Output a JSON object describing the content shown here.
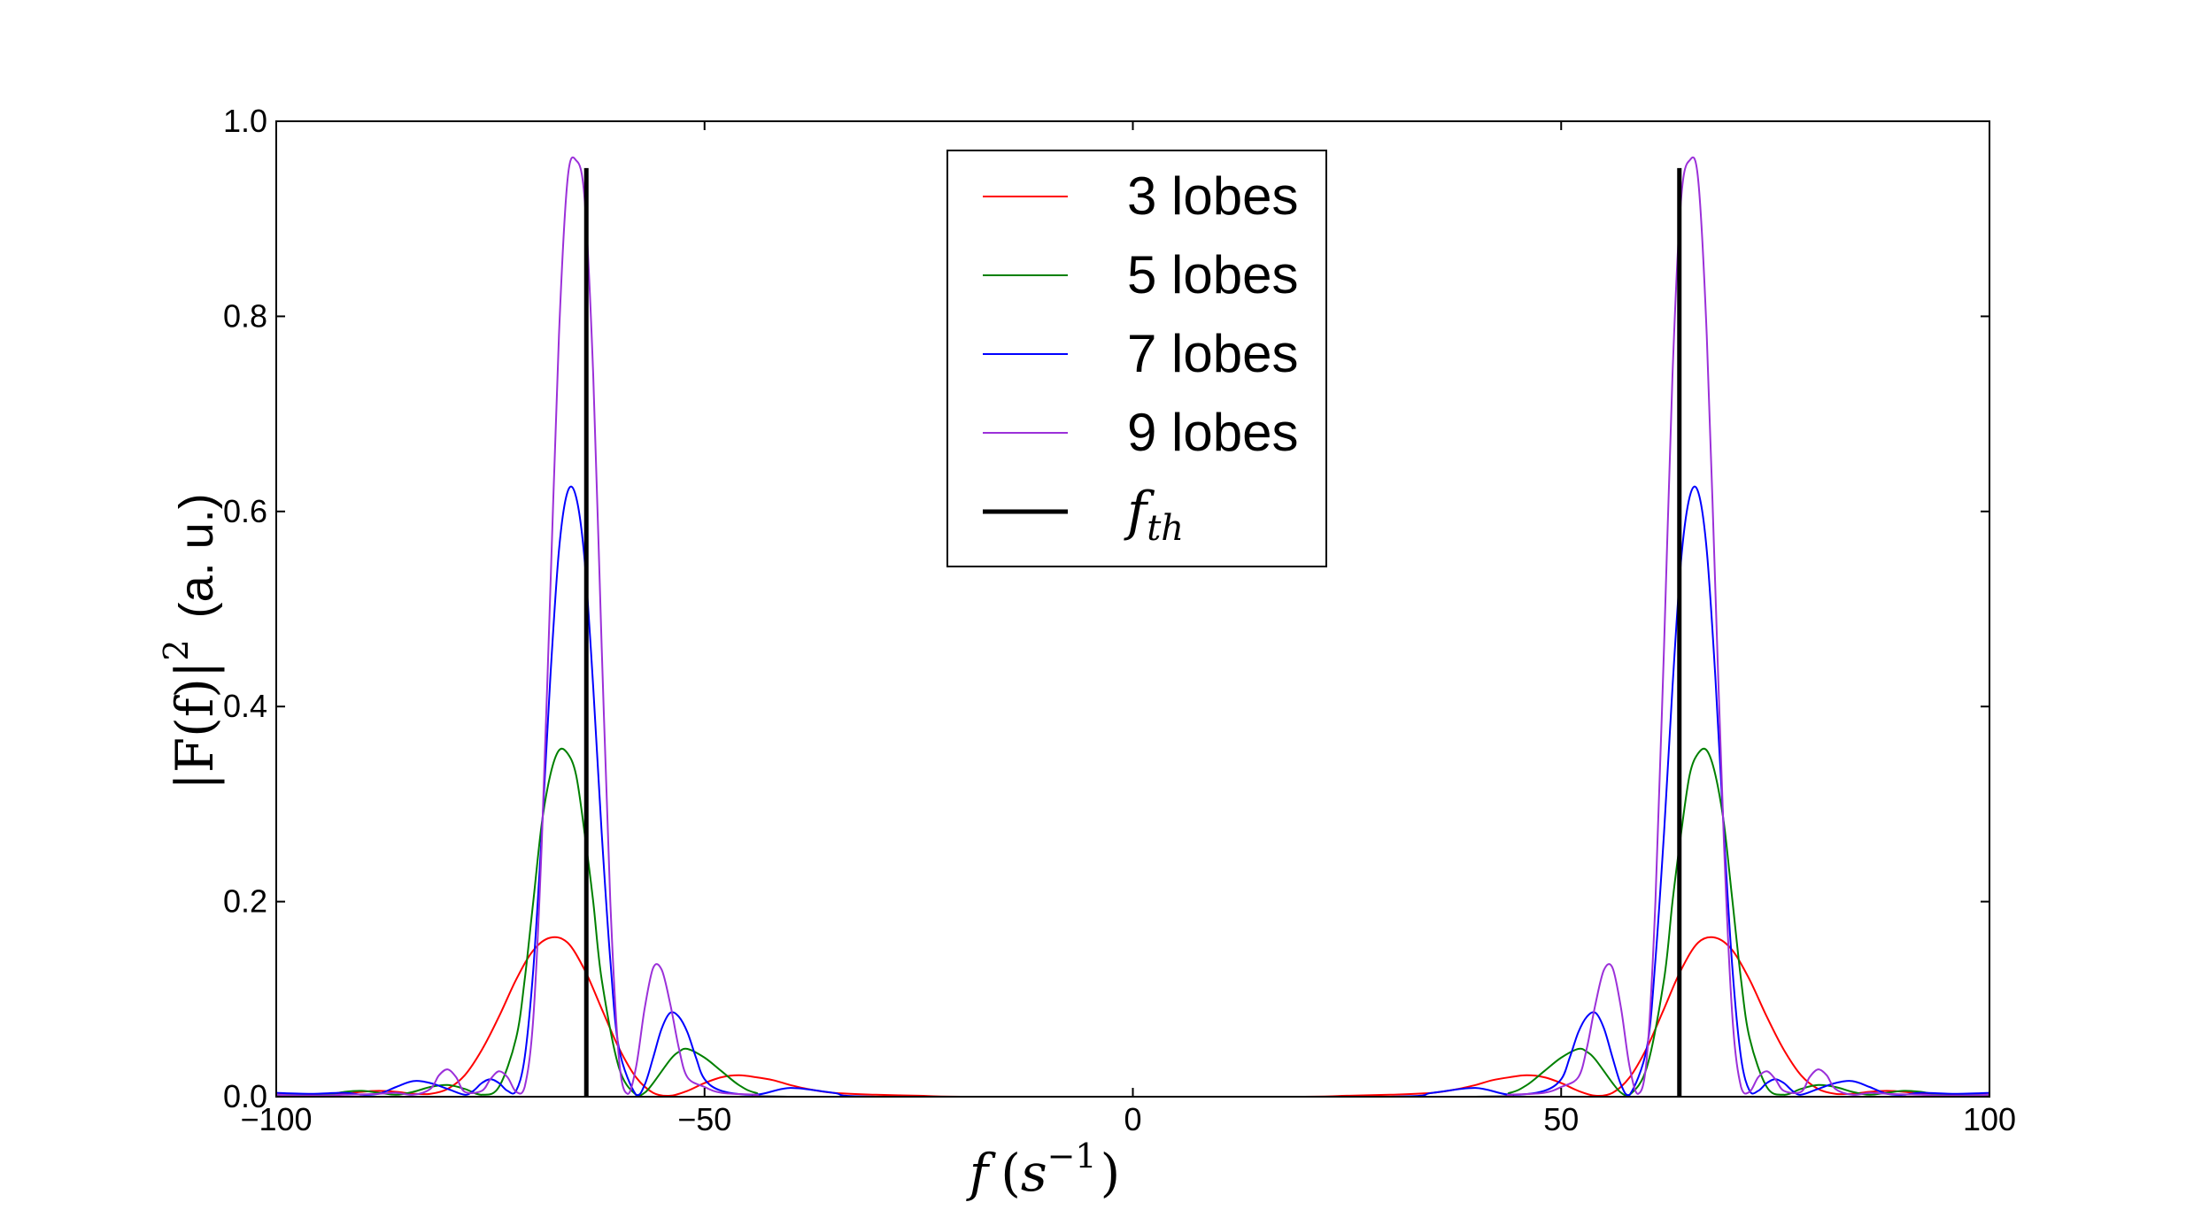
{
  "chart_data": {
    "type": "line",
    "title": "",
    "xlabel": {
      "var": "f",
      "open": "(",
      "unit": "s",
      "exp": "−1",
      "close": ")"
    },
    "ylabel": {
      "expr": "|F(f)|",
      "exp": "2",
      "unit": "(a. u.)"
    },
    "xlim": [
      -100,
      100
    ],
    "ylim": [
      0,
      1.0
    ],
    "grid": false,
    "legend_position": "upper-center",
    "xticks": [
      {
        "value": -100,
        "label": "−100"
      },
      {
        "value": -50,
        "label": "−50"
      },
      {
        "value": 0,
        "label": "0"
      },
      {
        "value": 50,
        "label": "50"
      },
      {
        "value": 100,
        "label": "100"
      }
    ],
    "yticks": [
      {
        "value": 0.0,
        "label": "0.0"
      },
      {
        "value": 0.2,
        "label": "0.2"
      },
      {
        "value": 0.4,
        "label": "0.4"
      },
      {
        "value": 0.6,
        "label": "0.6"
      },
      {
        "value": 0.8,
        "label": "0.8"
      },
      {
        "value": 1.0,
        "label": "1.0"
      }
    ],
    "series": [
      {
        "name": "3 lobes",
        "color": "#ff0000",
        "x": [
          0,
          20,
          25,
          30,
          35,
          38,
          40,
          42,
          44,
          46,
          48,
          50,
          52,
          54,
          56,
          58,
          60,
          62,
          64,
          66,
          68,
          70,
          72,
          74,
          76,
          78,
          80,
          82,
          84,
          86,
          88,
          90,
          92,
          94,
          96,
          98,
          100
        ],
        "y": [
          0,
          0,
          0.001,
          0.002,
          0.004,
          0.008,
          0.012,
          0.017,
          0.02,
          0.022,
          0.02,
          0.014,
          0.006,
          0.001,
          0.004,
          0.02,
          0.05,
          0.09,
          0.13,
          0.158,
          0.163,
          0.15,
          0.12,
          0.082,
          0.048,
          0.022,
          0.008,
          0.003,
          0.003,
          0.005,
          0.006,
          0.005,
          0.003,
          0.002,
          0.002,
          0.003,
          0.002
        ]
      },
      {
        "name": "5 lobes",
        "color": "#008000",
        "x": [
          0,
          40,
          44,
          46,
          48,
          50,
          52,
          53,
          54,
          56,
          57,
          58,
          60,
          62,
          63,
          64,
          65,
          66,
          67,
          68,
          69,
          70,
          71,
          72,
          74,
          76,
          78,
          80,
          82,
          84,
          86,
          88,
          90,
          92,
          94,
          96,
          98,
          100
        ],
        "y": [
          0,
          0,
          0.004,
          0.012,
          0.026,
          0.04,
          0.049,
          0.046,
          0.038,
          0.014,
          0.004,
          0.002,
          0.03,
          0.12,
          0.2,
          0.27,
          0.33,
          0.352,
          0.355,
          0.33,
          0.28,
          0.2,
          0.12,
          0.06,
          0.01,
          0.002,
          0.008,
          0.012,
          0.01,
          0.005,
          0.002,
          0.004,
          0.006,
          0.005,
          0.002,
          0.001,
          0.002,
          0.001
        ]
      },
      {
        "name": "7 lobes",
        "color": "#0000ff",
        "x": [
          0,
          30,
          35,
          40,
          44,
          48,
          50,
          51,
          52,
          53,
          54,
          55,
          56,
          57,
          58,
          60,
          61,
          62,
          63,
          64,
          65,
          66,
          67,
          68,
          69,
          70,
          71,
          72,
          73,
          74,
          75,
          76,
          77,
          78,
          80,
          82,
          84,
          86,
          88,
          90,
          92,
          96,
          100
        ],
        "y": [
          0,
          0,
          0.004,
          0.009,
          0.002,
          0.006,
          0.018,
          0.04,
          0.066,
          0.082,
          0.086,
          0.07,
          0.04,
          0.012,
          0.002,
          0.05,
          0.14,
          0.27,
          0.42,
          0.55,
          0.615,
          0.62,
          0.56,
          0.43,
          0.27,
          0.13,
          0.04,
          0.006,
          0.006,
          0.014,
          0.018,
          0.014,
          0.006,
          0.002,
          0.008,
          0.014,
          0.016,
          0.01,
          0.003,
          0.002,
          0.004,
          0.003,
          0.004
        ]
      },
      {
        "name": "9 lobes",
        "color": "#9b30d9",
        "x": [
          0,
          40,
          44,
          48,
          50,
          52,
          53,
          54,
          55,
          56,
          57,
          58,
          59,
          60,
          61,
          62,
          63,
          64,
          65,
          66,
          67,
          68,
          69,
          70,
          71,
          72,
          73,
          74,
          75,
          76,
          78,
          79,
          80,
          81,
          82,
          84,
          86,
          88,
          92,
          96,
          100
        ],
        "y": [
          0,
          0,
          0.002,
          0.004,
          0.01,
          0.02,
          0.05,
          0.095,
          0.13,
          0.132,
          0.09,
          0.03,
          0.003,
          0.04,
          0.2,
          0.46,
          0.74,
          0.92,
          0.96,
          0.94,
          0.78,
          0.52,
          0.26,
          0.08,
          0.01,
          0.005,
          0.02,
          0.026,
          0.018,
          0.006,
          0.005,
          0.02,
          0.028,
          0.022,
          0.008,
          0.002,
          0.004,
          0.003,
          0.002,
          0.001,
          0.002
        ]
      }
    ],
    "vlines": [
      {
        "name": "f_th",
        "x": [
          -63.8,
          63.8
        ],
        "y_top": 0.952,
        "color": "#000000"
      }
    ],
    "legend": [
      {
        "label": "3 lobes",
        "color": "#ff0000",
        "style": "thin"
      },
      {
        "label": "5 lobes",
        "color": "#008000",
        "style": "thin"
      },
      {
        "label": "7 lobes",
        "color": "#0000ff",
        "style": "thin"
      },
      {
        "label": "9 lobes",
        "color": "#9b30d9",
        "style": "thin"
      },
      {
        "label_main": "f",
        "label_sub": "th",
        "color": "#000000",
        "style": "thick"
      }
    ]
  }
}
